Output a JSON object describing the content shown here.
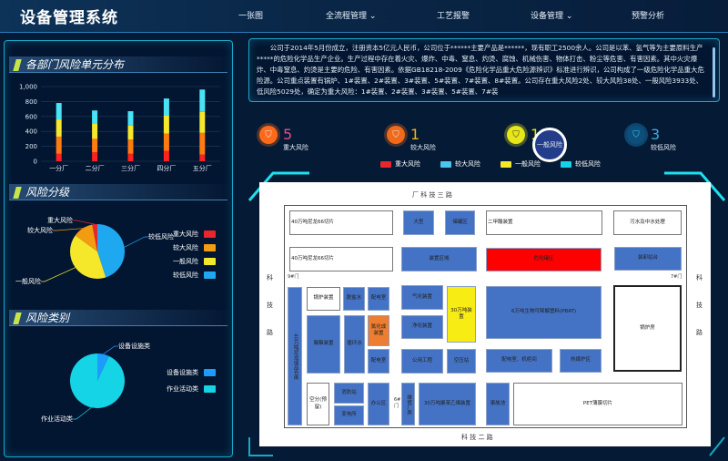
{
  "header": {
    "title": "设备管理系统",
    "nav": [
      "一张图",
      "全流程管理",
      "工艺报警",
      "设备管理",
      "预警分析"
    ],
    "dropdown_icon": "chevron-down-icon"
  },
  "intro": "公司于2014年5月份成立，注册资本5亿元人民币，公司位于******主要产品是******，现有职工2500余人。公司是以苯、氢气等为主要原料生产*****的危险化学品生产企业。生产过程中存在着火灾、爆炸、中毒、窒息、灼烫、腐蚀、机械伤害、物体打击、粉尘等危害、有害因素。其中火灾爆炸、中毒窒息、灼烫是主要的危险、有害因素。依据GB18218-2009《危险化学品重大危险源辨识》标准进行辨识，公司构成了一级危险化学品重大危险源。公司重点装置有锅炉、1#装置、2#装置、3#装置、5#装置、7#装置、8#装置。公司存在重大风险2处、较大风险38处、一般风险3933处、低风险5029处，确定为重大风险：1#装置、2#装置、3#装置、5#装置、7#装",
  "colors": {
    "major": "#e8262b",
    "large": "#f39c12",
    "general": "#f5e72a",
    "low": "#1ea8f0",
    "equipment": "#1e9bff",
    "activity": "#14d4e6"
  },
  "chart_data": [
    {
      "type": "bar",
      "stacked": true,
      "title": "各部门风险单元分布",
      "categories": [
        "一分厂",
        "二分厂",
        "三分厂",
        "四分厂",
        "五分厂"
      ],
      "ylim": [
        0,
        1000
      ],
      "yticks": [
        "0",
        "200",
        "400",
        "600",
        "800",
        "1,000"
      ],
      "series": [
        {
          "values": [
            100,
            120,
            100,
            140,
            90
          ]
        },
        {
          "values": [
            230,
            180,
            190,
            230,
            290
          ]
        },
        {
          "values": [
            230,
            200,
            190,
            240,
            280
          ]
        },
        {
          "values": [
            220,
            180,
            190,
            230,
            300
          ]
        }
      ],
      "grid": true
    },
    {
      "type": "pie",
      "title": "风险分级",
      "labels": [
        "较低风险",
        "一般风险",
        "较大风险",
        "重大风险"
      ],
      "values": [
        45,
        40,
        12,
        3
      ],
      "legend": [
        "重大风险",
        "较大风险",
        "一般风险",
        "较低风险"
      ],
      "legend_position": "right"
    },
    {
      "type": "pie",
      "title": "风险类别",
      "labels": [
        "设备设施类",
        "作业活动类"
      ],
      "values": [
        7,
        93
      ],
      "legend": [
        "设备设施类",
        "作业活动类"
      ],
      "legend_position": "right"
    }
  ],
  "stats": [
    {
      "value": "5",
      "label": "重大风险",
      "color": "#ff6a1a"
    },
    {
      "value": "1",
      "label": "较大风险",
      "color": "#f39c12"
    },
    {
      "value": "1",
      "label": "一般风险",
      "color": "#e6e61a"
    },
    {
      "value": "3",
      "label": "较低风险",
      "color": "#1ea8f0"
    }
  ],
  "map_legend": [
    "重大风险",
    "较大风险",
    "一般风险",
    "较低风险"
  ],
  "highlight_label": "一般风险",
  "map": {
    "roads": {
      "top": "厂  科  技  三  路",
      "bottom": "科  技  二  路",
      "left": "科技路",
      "right": "科技路"
    },
    "gates": [
      "9#门",
      "7#门",
      "6#门"
    ],
    "blocks": [
      "40万吨尼龙66切片",
      "大型",
      "储罐区",
      "二甲酸装置",
      "污水及中水处理",
      "40万吨尼龙66切片",
      "装置区域",
      "危险罐区",
      "装卸站台",
      "40万吨尼龙成品仓库",
      "锅炉装置",
      "脱盐水",
      "配电室",
      "气化装置",
      "30万吨装置",
      "6万吨生物可降解塑料(PBAT)",
      "锅炉房",
      "聚酯装置",
      "循环水",
      "氯化成装置",
      "配电室",
      "净化装置",
      "公用工程",
      "空压站",
      "配电室、机柜间",
      "热媒炉区",
      "空分(预留)",
      "消防站",
      "变电所",
      "办公区",
      "维修厂房",
      "30万吨聚苯乙烯装置",
      "事故池",
      "PET薄膜切片"
    ]
  }
}
